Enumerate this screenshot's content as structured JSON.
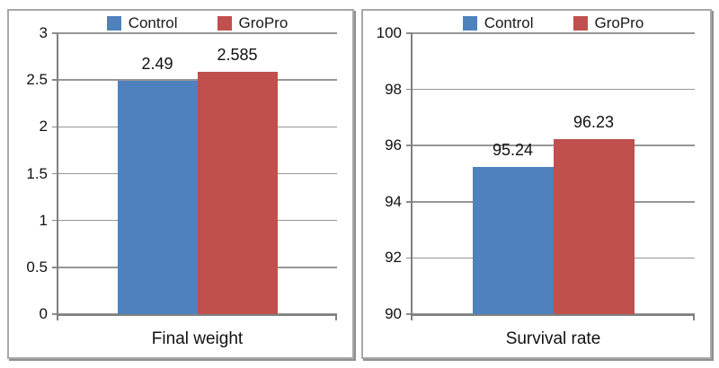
{
  "figure": {
    "description": "Two bar chart panels comparing Control and GroPro groups",
    "background": "#ffffff"
  },
  "styles": {
    "axis_color": "#808080",
    "grid_color": "#969696",
    "tick_color": "#8a8a8a",
    "text_color": "#111111",
    "panel_border_color": "#a8a8a8",
    "panel_shadow_color": "#8f8f8f",
    "control_color": "#4F81BD",
    "gropro_color": "#C0504D"
  },
  "legend": {
    "items": [
      {
        "label": "Control",
        "color": "#4F81BD"
      },
      {
        "label": "GroPro",
        "color": "#C0504D"
      }
    ],
    "position": "top"
  },
  "chart_data": [
    {
      "type": "bar",
      "title": "",
      "categories": [
        "Final weight"
      ],
      "xlabel": "Final weight",
      "ylabel": "",
      "grid": true,
      "legend_position": "top",
      "ylim": [
        0,
        3
      ],
      "yticks": [
        3,
        2.5,
        2,
        1.5,
        1,
        0.5,
        0
      ],
      "ytick_labels": [
        "3",
        "2.5",
        "2",
        "1.5",
        "1",
        "0.5",
        "0"
      ],
      "series": [
        {
          "name": "Control",
          "color": "#4F81BD",
          "values": [
            2.49
          ],
          "data_labels": [
            "2.49"
          ]
        },
        {
          "name": "GroPro",
          "color": "#C0504D",
          "values": [
            2.585
          ],
          "data_labels": [
            "2.585"
          ]
        }
      ]
    },
    {
      "type": "bar",
      "title": "",
      "categories": [
        "Survival rate"
      ],
      "xlabel": "Survival rate",
      "ylabel": "",
      "grid": true,
      "legend_position": "top",
      "ylim": [
        90,
        100
      ],
      "yticks": [
        100,
        98,
        96,
        94,
        92,
        90
      ],
      "ytick_labels": [
        "100",
        "98",
        "96",
        "94",
        "92",
        "90"
      ],
      "series": [
        {
          "name": "Control",
          "color": "#4F81BD",
          "values": [
            95.24
          ],
          "data_labels": [
            "95.24"
          ]
        },
        {
          "name": "GroPro",
          "color": "#C0504D",
          "values": [
            96.23
          ],
          "data_labels": [
            "96.23"
          ]
        }
      ]
    }
  ]
}
